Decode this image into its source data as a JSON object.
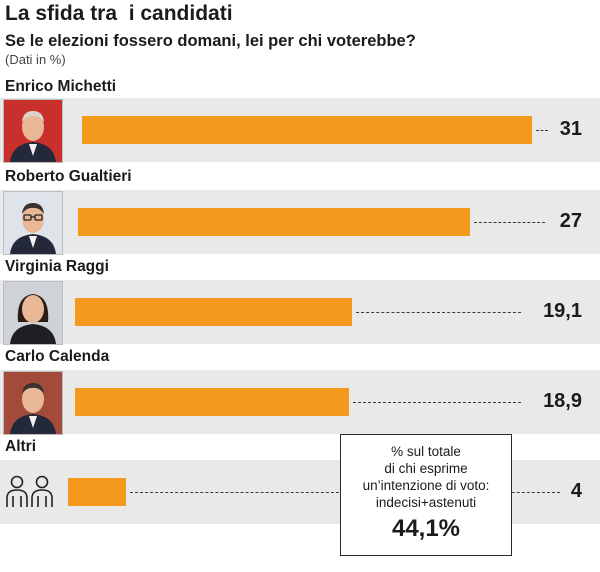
{
  "chart_data": {
    "type": "bar",
    "orientation": "horizontal",
    "title": "La sfida tra  i candidati",
    "subtitle": "Se le elezioni fossero domani, lei per chi voterebbe?",
    "units_note": "(Dati in %)",
    "categories": [
      "Enrico Michetti",
      "Roberto Gualtieri",
      "Virginia Raggi",
      "Carlo Calenda",
      "Altri"
    ],
    "values": [
      31,
      27,
      19.1,
      18.9,
      4
    ],
    "value_labels": [
      "31",
      "27",
      "19,1",
      "18,9",
      "4"
    ],
    "bar_color": "#f39a1c",
    "annotation": {
      "text": "% sul totale\ndi chi esprime\nun’intenzione di voto:\nindecisi+astenuti",
      "value": "44,1%"
    }
  },
  "photos": [
    "portrait-michetti",
    "portrait-gualtieri",
    "portrait-raggi",
    "portrait-calenda"
  ],
  "icons": {
    "altri": "people-icon"
  }
}
